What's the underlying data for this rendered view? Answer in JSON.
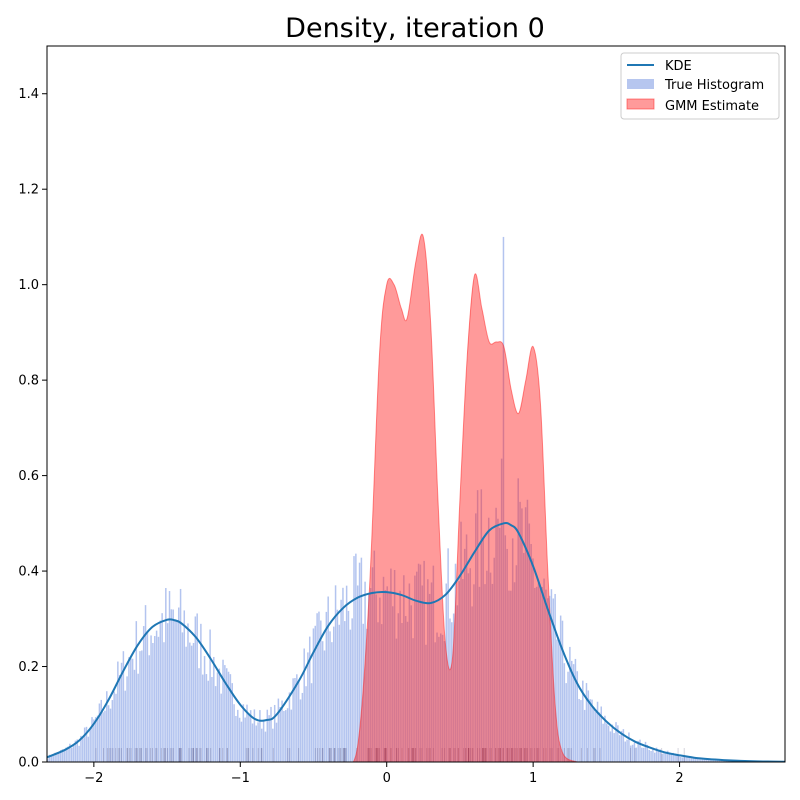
{
  "chart_data": {
    "type": "area",
    "title": "Density, iteration 0",
    "xlabel": "",
    "ylabel": "",
    "xlim": [
      -2.32,
      2.72
    ],
    "ylim": [
      0,
      1.5
    ],
    "xticks": [
      -2,
      -1,
      0,
      1,
      2
    ],
    "xtick_labels": [
      "−2",
      "−1",
      "0",
      "1",
      "2"
    ],
    "yticks": [
      0.0,
      0.2,
      0.4,
      0.6,
      0.8,
      1.0,
      1.2,
      1.4
    ],
    "ytick_labels": [
      "0.0",
      "0.2",
      "0.4",
      "0.6",
      "0.8",
      "1.0",
      "1.2",
      "1.4"
    ],
    "grid": false,
    "legend_position": "top-right",
    "legend": [
      "KDE",
      "True Histogram",
      "GMM Estimate"
    ],
    "colors": {
      "kde": "#1f77b4",
      "histogram": "#6d8de0",
      "gmm": "#ff2020",
      "rug": "#1a1040"
    },
    "series": [
      {
        "name": "KDE",
        "kind": "line",
        "x": [
          -2.32,
          -2.2,
          -2.1,
          -2.0,
          -1.9,
          -1.8,
          -1.7,
          -1.6,
          -1.5,
          -1.45,
          -1.4,
          -1.3,
          -1.2,
          -1.1,
          -1.0,
          -0.9,
          -0.82,
          -0.75,
          -0.6,
          -0.5,
          -0.4,
          -0.3,
          -0.2,
          -0.1,
          0.0,
          0.1,
          0.2,
          0.3,
          0.4,
          0.5,
          0.6,
          0.7,
          0.8,
          0.85,
          0.9,
          1.0,
          1.1,
          1.2,
          1.3,
          1.4,
          1.5,
          1.6,
          1.7,
          1.8,
          1.9,
          2.0,
          2.1,
          2.2,
          2.3,
          2.4,
          2.5,
          2.6,
          2.72
        ],
        "y": [
          0.01,
          0.025,
          0.045,
          0.08,
          0.13,
          0.19,
          0.245,
          0.283,
          0.298,
          0.297,
          0.29,
          0.26,
          0.215,
          0.165,
          0.12,
          0.09,
          0.088,
          0.1,
          0.17,
          0.23,
          0.285,
          0.322,
          0.344,
          0.354,
          0.356,
          0.35,
          0.338,
          0.333,
          0.35,
          0.39,
          0.44,
          0.485,
          0.5,
          0.496,
          0.48,
          0.41,
          0.32,
          0.235,
          0.165,
          0.118,
          0.085,
          0.06,
          0.042,
          0.03,
          0.02,
          0.014,
          0.009,
          0.006,
          0.004,
          0.0025,
          0.0015,
          0.001,
          0.0005
        ]
      },
      {
        "name": "GMM Estimate",
        "kind": "area",
        "x": [
          -0.3,
          -0.2,
          -0.12,
          -0.05,
          0.0,
          0.05,
          0.1,
          0.14,
          0.2,
          0.25,
          0.3,
          0.35,
          0.4,
          0.45,
          0.5,
          0.55,
          0.6,
          0.65,
          0.7,
          0.75,
          0.8,
          0.85,
          0.9,
          0.95,
          1.0,
          1.05,
          1.1,
          1.15,
          1.2,
          1.3
        ],
        "y": [
          0.0,
          0.03,
          0.35,
          0.85,
          1.0,
          1.0,
          0.95,
          0.93,
          1.05,
          1.1,
          0.92,
          0.55,
          0.25,
          0.22,
          0.55,
          0.85,
          1.02,
          0.95,
          0.88,
          0.88,
          0.87,
          0.78,
          0.73,
          0.8,
          0.87,
          0.75,
          0.4,
          0.12,
          0.02,
          0.0
        ]
      },
      {
        "name": "True Histogram",
        "kind": "histogram",
        "x_range": [
          -2.32,
          2.72
        ],
        "bins": 400,
        "peak_bin": {
          "x": 0.8,
          "y": 1.1
        }
      }
    ]
  }
}
